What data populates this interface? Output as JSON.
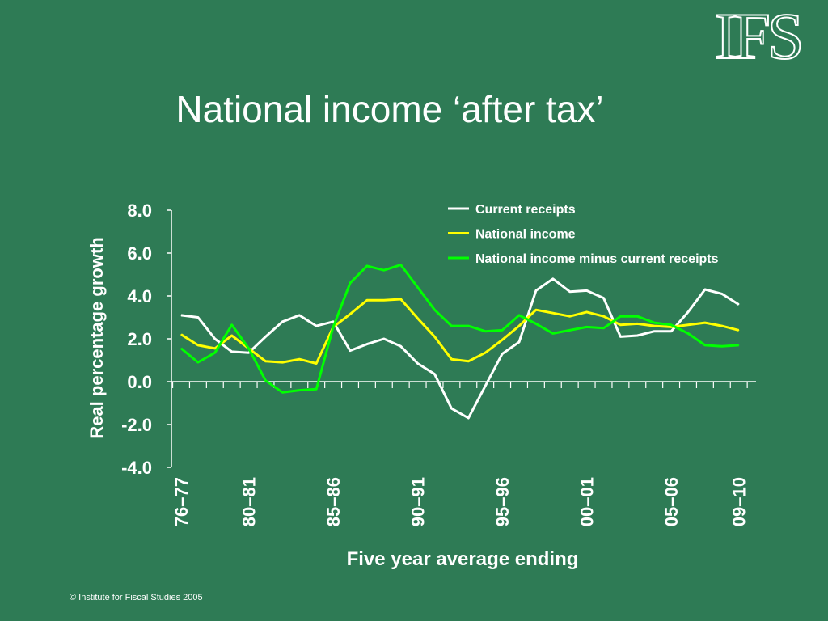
{
  "slide": {
    "title": "National income ‘after tax’",
    "logo_text": "IFS",
    "footer": "© Institute for Fiscal Studies 2005",
    "background_color": "#2e7b55"
  },
  "chart_data": {
    "type": "line",
    "title": "",
    "xlabel": "Five year average ending",
    "ylabel": "Real percentage growth",
    "ylim": [
      -4.0,
      8.0
    ],
    "y_ticks": [
      "8.0",
      "6.0",
      "4.0",
      "2.0",
      "0.0",
      "-2.0",
      "-4.0"
    ],
    "y_tick_values": [
      8,
      6,
      4,
      2,
      0,
      -2,
      -4
    ],
    "x_tick_labels": [
      "76–77",
      "80–81",
      "85–86",
      "90–91",
      "95–96",
      "00–01",
      "05–06",
      "09–10"
    ],
    "x_tick_indices": [
      0,
      4,
      9,
      14,
      19,
      24,
      29,
      33
    ],
    "num_points": 34,
    "legend_position": "top-right",
    "series": [
      {
        "name": "Current receipts",
        "color": "#ffffff",
        "values": [
          3.1,
          3.0,
          2.0,
          1.4,
          1.35,
          2.1,
          2.8,
          3.1,
          2.6,
          2.8,
          1.45,
          1.75,
          2.0,
          1.65,
          0.85,
          0.35,
          -1.25,
          -1.7,
          -0.2,
          1.3,
          1.85,
          4.25,
          4.8,
          4.2,
          4.25,
          3.9,
          2.1,
          2.15,
          2.35,
          2.35,
          3.25,
          4.3,
          4.1,
          3.6
        ]
      },
      {
        "name": "National income",
        "color": "#ffff00",
        "values": [
          2.2,
          1.7,
          1.55,
          2.15,
          1.55,
          0.95,
          0.9,
          1.05,
          0.85,
          2.55,
          3.15,
          3.8,
          3.8,
          3.85,
          2.95,
          2.1,
          1.05,
          0.95,
          1.35,
          1.95,
          2.6,
          3.35,
          3.2,
          3.05,
          3.25,
          3.05,
          2.65,
          2.7,
          2.6,
          2.55,
          2.65,
          2.75,
          2.6,
          2.4
        ]
      },
      {
        "name": "National income minus current receipts",
        "color": "#00ff00",
        "values": [
          1.55,
          0.9,
          1.35,
          2.65,
          1.55,
          0.05,
          -0.5,
          -0.4,
          -0.35,
          2.55,
          4.6,
          5.4,
          5.2,
          5.45,
          4.4,
          3.35,
          2.6,
          2.6,
          2.35,
          2.4,
          3.1,
          2.7,
          2.25,
          2.4,
          2.55,
          2.5,
          3.05,
          3.05,
          2.75,
          2.65,
          2.25,
          1.7,
          1.65,
          1.7
        ]
      }
    ]
  }
}
